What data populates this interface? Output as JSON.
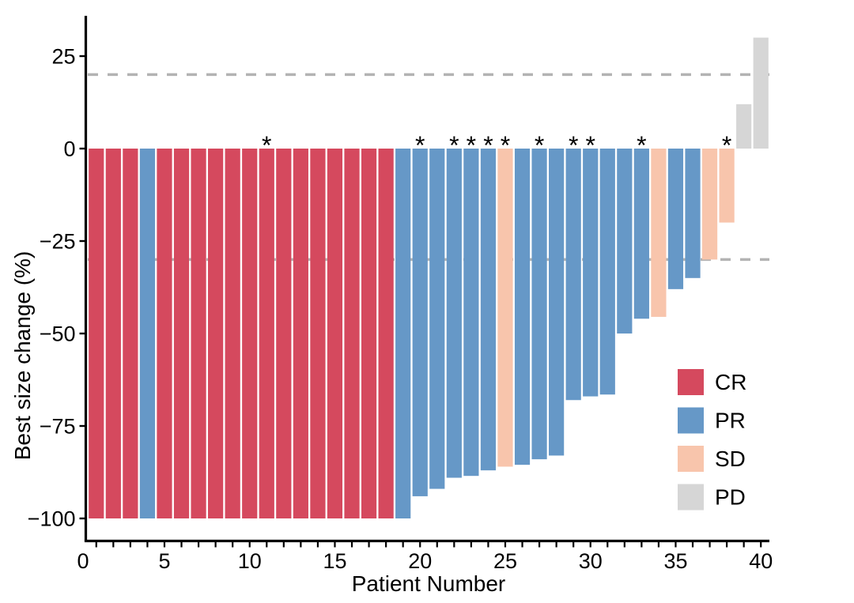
{
  "chart_data": {
    "type": "bar",
    "subtype": "waterfall",
    "title": "",
    "xlabel": "Patient Number",
    "ylabel": "Best size change (%)",
    "ylim": [
      -100,
      35
    ],
    "xlim": [
      0,
      40
    ],
    "grid": false,
    "legend_position": "inside-right",
    "yticks": [
      {
        "v": 25,
        "label": "25"
      },
      {
        "v": 0,
        "label": "0"
      },
      {
        "v": -25,
        "label": "−25"
      },
      {
        "v": -50,
        "label": "−50"
      },
      {
        "v": -75,
        "label": "−75"
      },
      {
        "v": -100,
        "label": "−100"
      }
    ],
    "xticks_labeled": [
      {
        "v": 0,
        "label": "0"
      },
      {
        "v": 5,
        "label": "5"
      },
      {
        "v": 10,
        "label": "10"
      },
      {
        "v": 15,
        "label": "15"
      },
      {
        "v": 20,
        "label": "20"
      },
      {
        "v": 25,
        "label": "25"
      },
      {
        "v": 30,
        "label": "30"
      },
      {
        "v": 35,
        "label": "35"
      },
      {
        "v": 40,
        "label": "40"
      }
    ],
    "reference_lines": [
      {
        "name": "pd-threshold",
        "value": 20
      },
      {
        "name": "response-threshold",
        "value": -30
      }
    ],
    "legend": [
      {
        "label": "CR",
        "color": "#D5495E"
      },
      {
        "label": "PR",
        "color": "#6698C7"
      },
      {
        "label": "SD",
        "color": "#F8C5AC"
      },
      {
        "label": "PD",
        "color": "#D6D6D6"
      }
    ],
    "annotation_symbol": "*",
    "starred_patients": [
      11,
      20,
      22,
      23,
      24,
      25,
      27,
      29,
      30,
      33,
      38
    ],
    "patients": [
      {
        "n": 1,
        "value": -100,
        "response": "CR"
      },
      {
        "n": 2,
        "value": -100,
        "response": "CR"
      },
      {
        "n": 3,
        "value": -100,
        "response": "CR"
      },
      {
        "n": 4,
        "value": -100,
        "response": "PR"
      },
      {
        "n": 5,
        "value": -100,
        "response": "CR"
      },
      {
        "n": 6,
        "value": -100,
        "response": "CR"
      },
      {
        "n": 7,
        "value": -100,
        "response": "CR"
      },
      {
        "n": 8,
        "value": -100,
        "response": "CR"
      },
      {
        "n": 9,
        "value": -100,
        "response": "CR"
      },
      {
        "n": 10,
        "value": -100,
        "response": "CR"
      },
      {
        "n": 11,
        "value": -100,
        "response": "CR"
      },
      {
        "n": 12,
        "value": -100,
        "response": "CR"
      },
      {
        "n": 13,
        "value": -100,
        "response": "CR"
      },
      {
        "n": 14,
        "value": -100,
        "response": "CR"
      },
      {
        "n": 15,
        "value": -100,
        "response": "CR"
      },
      {
        "n": 16,
        "value": -100,
        "response": "CR"
      },
      {
        "n": 17,
        "value": -100,
        "response": "CR"
      },
      {
        "n": 18,
        "value": -100,
        "response": "CR"
      },
      {
        "n": 19,
        "value": -100,
        "response": "PR"
      },
      {
        "n": 20,
        "value": -94,
        "response": "PR"
      },
      {
        "n": 21,
        "value": -92,
        "response": "PR"
      },
      {
        "n": 22,
        "value": -89,
        "response": "PR"
      },
      {
        "n": 23,
        "value": -88.5,
        "response": "PR"
      },
      {
        "n": 24,
        "value": -87,
        "response": "PR"
      },
      {
        "n": 25,
        "value": -86,
        "response": "SD"
      },
      {
        "n": 26,
        "value": -85.5,
        "response": "PR"
      },
      {
        "n": 27,
        "value": -84,
        "response": "PR"
      },
      {
        "n": 28,
        "value": -83,
        "response": "PR"
      },
      {
        "n": 29,
        "value": -68,
        "response": "PR"
      },
      {
        "n": 30,
        "value": -67,
        "response": "PR"
      },
      {
        "n": 31,
        "value": -66.5,
        "response": "PR"
      },
      {
        "n": 32,
        "value": -50,
        "response": "PR"
      },
      {
        "n": 33,
        "value": -46,
        "response": "PR"
      },
      {
        "n": 34,
        "value": -45.5,
        "response": "SD"
      },
      {
        "n": 35,
        "value": -38,
        "response": "PR"
      },
      {
        "n": 36,
        "value": -35,
        "response": "PR"
      },
      {
        "n": 37,
        "value": -30,
        "response": "SD"
      },
      {
        "n": 38,
        "value": -20,
        "response": "SD"
      },
      {
        "n": 39,
        "value": 12,
        "response": "PD"
      },
      {
        "n": 40,
        "value": 30,
        "response": "PD"
      }
    ]
  },
  "colors": {
    "background": "#FFFFFF",
    "axis": "#000000",
    "tick_label": "#000000",
    "reference_line": "#B3B3B3",
    "asterisk": "#000000",
    "cr": "#D5495E",
    "pr": "#6698C7",
    "sd": "#F8C5AC",
    "pd": "#D6D6D6"
  }
}
